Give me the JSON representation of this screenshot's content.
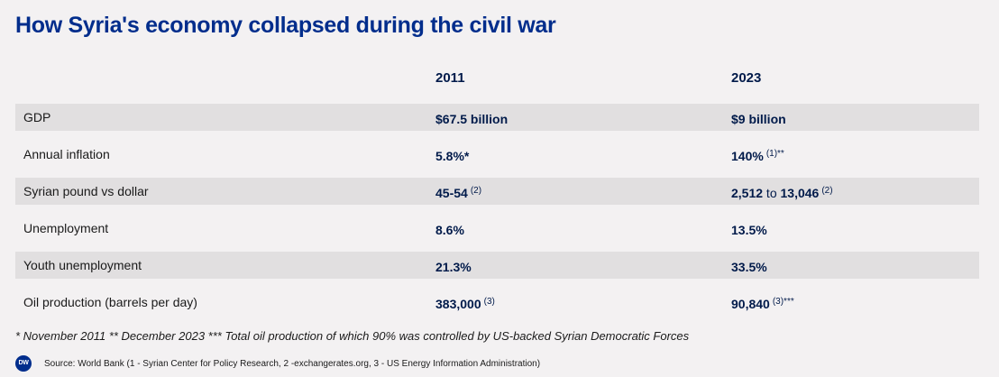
{
  "title": "How Syria's economy collapsed during the civil war",
  "columns": [
    "2011",
    "2023"
  ],
  "rows": [
    {
      "label": "GDP",
      "v2011": "$67.5 billion",
      "v2011_note": "",
      "v2023": "$9 billion",
      "v2023_mid": "",
      "v2023_tail": "",
      "v2023_note": ""
    },
    {
      "label": "Annual inflation",
      "v2011": "5.8%*",
      "v2011_note": "",
      "v2023": "140%",
      "v2023_mid": "",
      "v2023_tail": "",
      "v2023_note": "(1)**"
    },
    {
      "label": "Syrian pound vs dollar",
      "v2011": "45-54",
      "v2011_note": "(2)",
      "v2023": "2,512",
      "v2023_mid": " to ",
      "v2023_tail": "13,046",
      "v2023_note": "(2)"
    },
    {
      "label": "Unemployment",
      "v2011": "8.6%",
      "v2011_note": "",
      "v2023": "13.5%",
      "v2023_mid": "",
      "v2023_tail": "",
      "v2023_note": ""
    },
    {
      "label": "Youth unemployment",
      "v2011": "21.3%",
      "v2011_note": "",
      "v2023": "33.5%",
      "v2023_mid": "",
      "v2023_tail": "",
      "v2023_note": ""
    },
    {
      "label": "Oil production (barrels per day)",
      "v2011": "383,000",
      "v2011_note": "(3)",
      "v2023": "90,840",
      "v2023_mid": "",
      "v2023_tail": "",
      "v2023_note": "(3)***"
    }
  ],
  "footnote": "* November 2011 ** December 2023 *** Total oil production of which 90% was controlled by US-backed Syrian Democratic Forces",
  "source": {
    "logo": "DW",
    "text": "Source: World Bank (1 - Syrian Center for Policy Research, 2 -exchangerates.org, 3 - US Energy Information Administration)"
  }
}
